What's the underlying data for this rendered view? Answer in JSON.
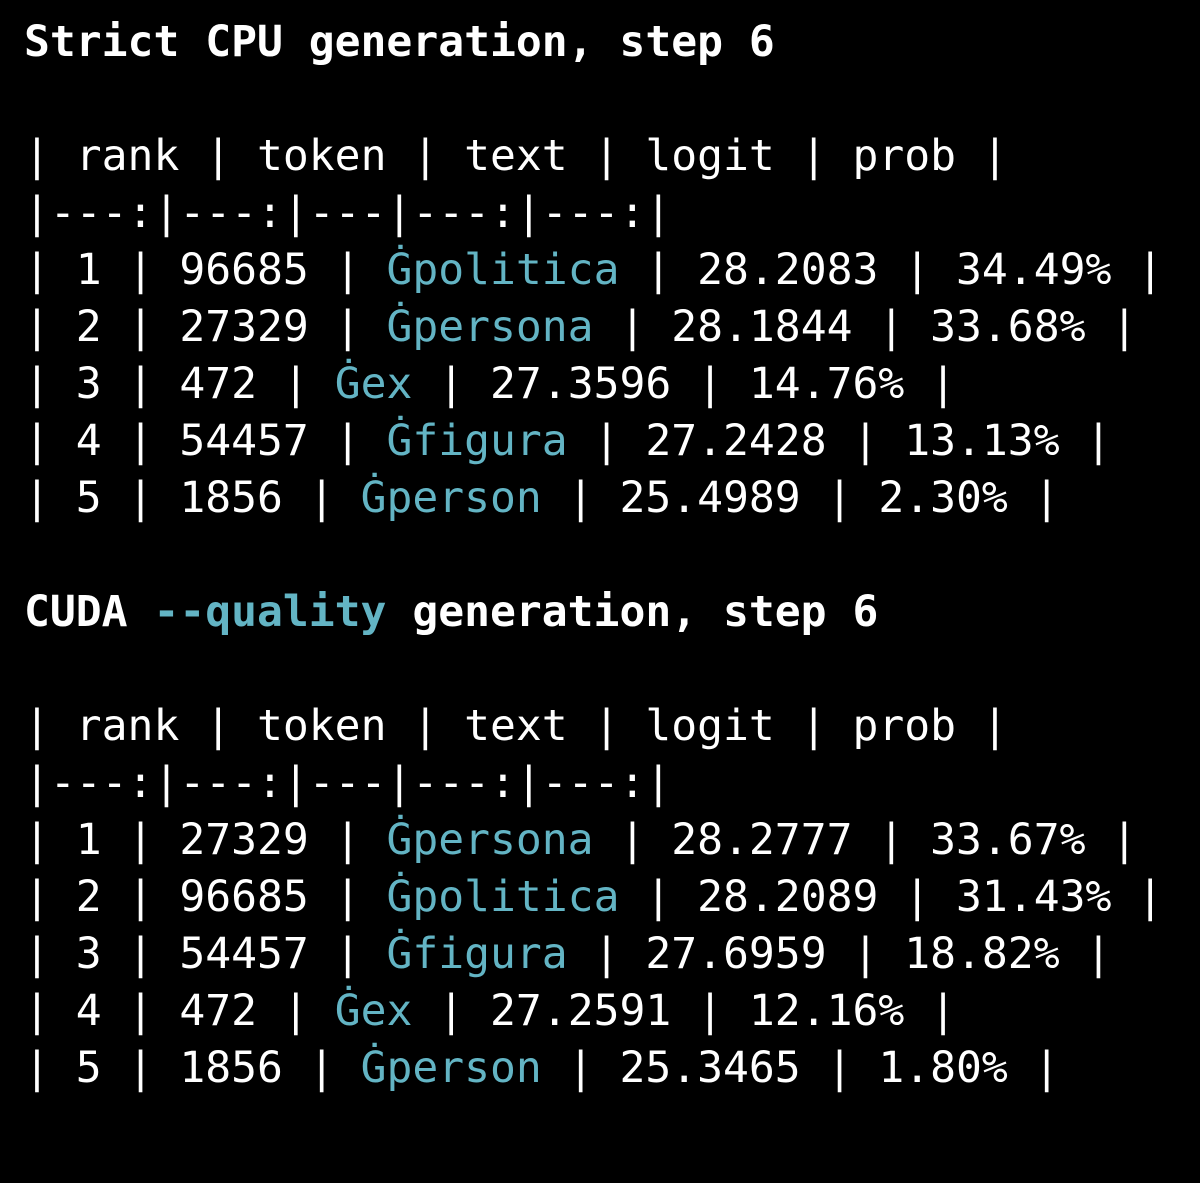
{
  "delimiter": "|",
  "sections": [
    {
      "title": {
        "text": "Strict CPU generation, step 6"
      },
      "table": {
        "columns": [
          "rank",
          "token",
          "text",
          "logit",
          "prob"
        ],
        "separator": "|---:|---:|---|---:|---:|",
        "rows": [
          [
            "1",
            "96685",
            "Ġpolitica",
            "28.2083",
            "34.49%"
          ],
          [
            "2",
            "27329",
            "Ġpersona",
            "28.1844",
            "33.68%"
          ],
          [
            "3",
            "472",
            "Ġex",
            "27.3596",
            "14.76%"
          ],
          [
            "4",
            "54457",
            "Ġfigura",
            "27.2428",
            "13.13%"
          ],
          [
            "5",
            "1856",
            "Ġperson",
            "25.4989",
            "2.30%"
          ]
        ]
      }
    },
    {
      "title": {
        "prefix": "CUDA",
        "flag": "--quality",
        "suffix": "generation, step 6"
      },
      "table": {
        "columns": [
          "rank",
          "token",
          "text",
          "logit",
          "prob"
        ],
        "separator": "|---:|---:|---|---:|---:|",
        "rows": [
          [
            "1",
            "27329",
            "Ġpersona",
            "28.2777",
            "33.67%"
          ],
          [
            "2",
            "96685",
            "Ġpolitica",
            "28.2089",
            "31.43%"
          ],
          [
            "3",
            "54457",
            "Ġfigura",
            "27.6959",
            "18.82%"
          ],
          [
            "4",
            "472",
            "Ġex",
            "27.2591",
            "12.16%"
          ],
          [
            "5",
            "1856",
            "Ġperson",
            "25.3465",
            "1.80%"
          ]
        ]
      }
    }
  ]
}
